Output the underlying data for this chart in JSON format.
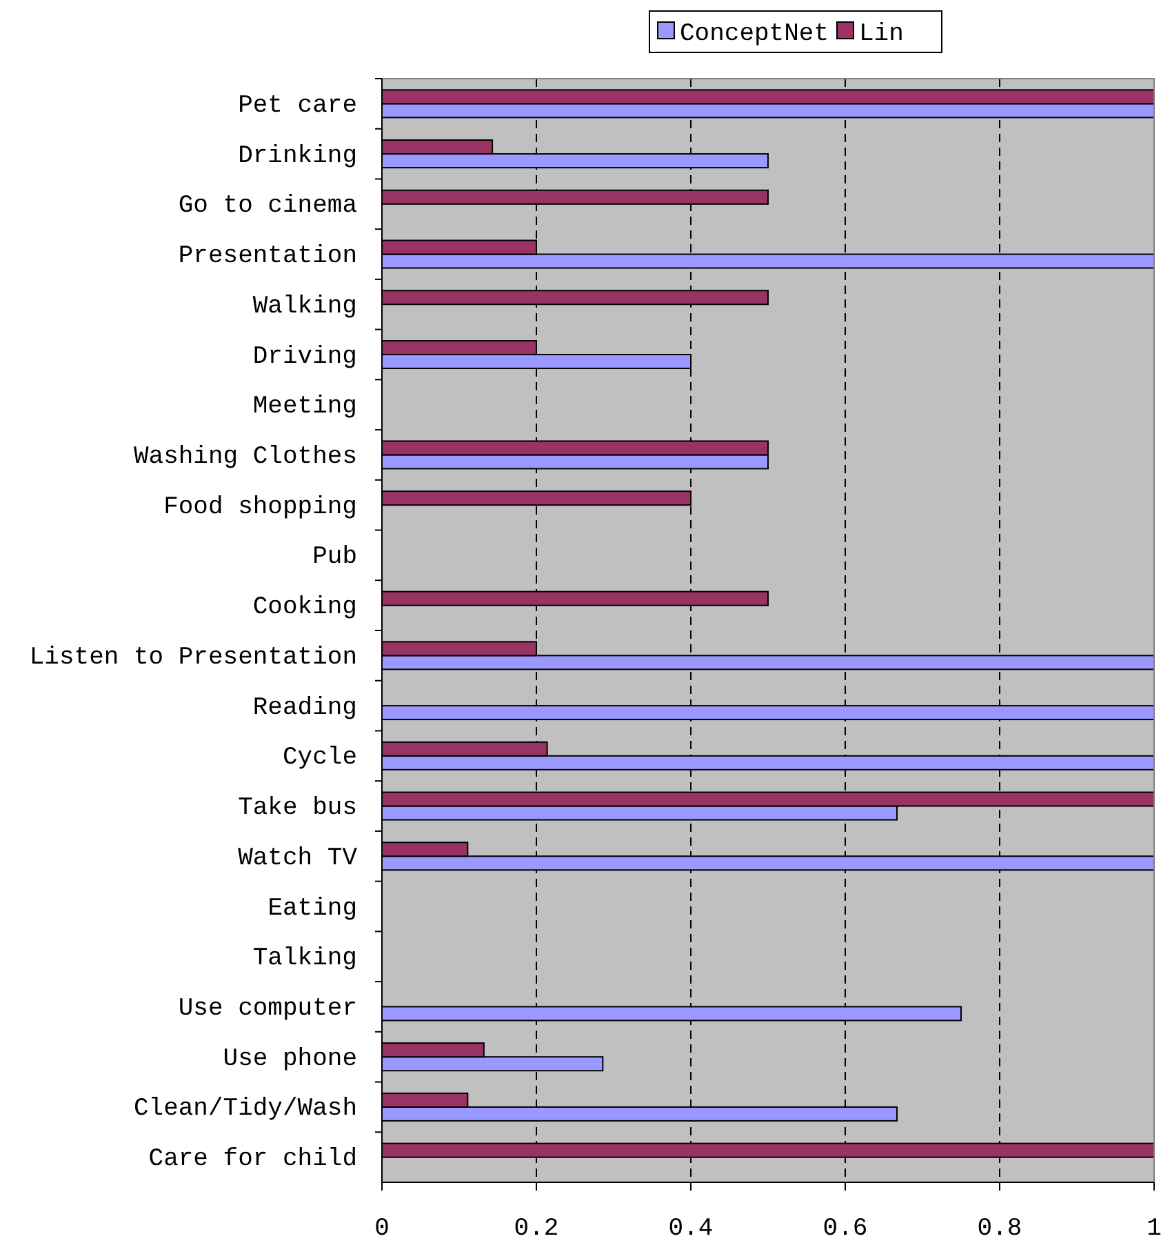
{
  "chart_data": {
    "type": "bar",
    "orientation": "horizontal",
    "categories": [
      "Pet care",
      "Drinking",
      "Go to cinema",
      "Presentation",
      "Walking",
      "Driving",
      "Meeting",
      "Washing Clothes",
      "Food shopping",
      "Pub",
      "Cooking",
      "Listen to Presentation",
      "Reading",
      "Cycle",
      "Take bus",
      "Watch TV",
      "Eating",
      "Talking",
      "Use computer",
      "Use phone",
      "Clean/Tidy/Wash",
      "Care for child"
    ],
    "series": [
      {
        "name": "ConceptNet",
        "color": "#9999ff",
        "values": [
          1,
          0.5,
          0,
          1,
          0,
          0.4,
          0,
          0.5,
          0,
          0,
          0,
          1,
          1,
          1,
          0.667,
          1,
          0,
          0,
          0.75,
          0.286,
          0.667,
          0
        ]
      },
      {
        "name": "Lin",
        "color": "#993366",
        "values": [
          1,
          0.143,
          0.5,
          0.2,
          0.5,
          0.2,
          0,
          0.5,
          0.4,
          0,
          0.5,
          0.2,
          0,
          0.214,
          1,
          0.111,
          0,
          0,
          0,
          0.132,
          0.111,
          1
        ]
      }
    ],
    "xlim": [
      0,
      1
    ],
    "xticks": [
      0,
      {
        "value": 0.2,
        "label": "0.2"
      },
      {
        "value": 0.4,
        "label": "0.4"
      },
      {
        "value": 0.6,
        "label": "0.6"
      },
      {
        "value": 0.8,
        "label": "0.8"
      },
      1
    ],
    "grid": "x",
    "legend": "top"
  }
}
